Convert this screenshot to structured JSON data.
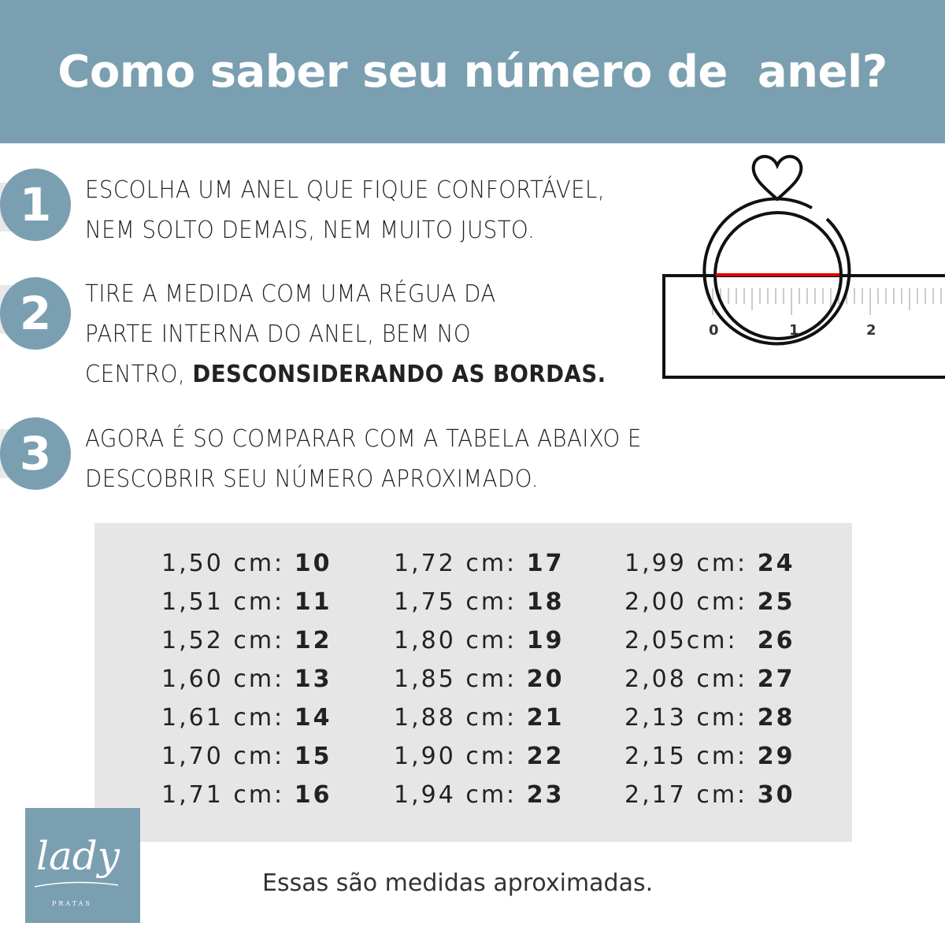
{
  "header": {
    "title": "Como saber seu número de  anel?"
  },
  "steps": [
    {
      "number": "1",
      "lines": [
        "ESCOLHA UM ANEL QUE FIQUE CONFORTÁVEL,",
        "NEM SOLTO DEMAIS, NEM MUITO JUSTO."
      ]
    },
    {
      "number": "2",
      "lines": [
        "TIRE A MEDIDA COM UMA RÉGUA DA",
        "PARTE INTERNA DO ANEL, BEM NO"
      ],
      "line3_prefix": "CENTRO, ",
      "line3_bold": "DESCONSIDERANDO AS BORDAS."
    },
    {
      "number": "3",
      "lines": [
        "AGORA É SO COMPARAR COM A TABELA ABAIXO E",
        "DESCOBRIR SEU NÚMERO APROXIMADO."
      ]
    }
  ],
  "ruler": {
    "labels": [
      "0",
      "1",
      "2"
    ],
    "measure_color": "#e00000"
  },
  "size_table": {
    "columns": [
      [
        {
          "m": "1,50 cm: ",
          "s": "10"
        },
        {
          "m": "1,51 cm: ",
          "s": "11"
        },
        {
          "m": "1,52 cm: ",
          "s": "12"
        },
        {
          "m": "1,60 cm: ",
          "s": "13"
        },
        {
          "m": "1,61 cm: ",
          "s": "14"
        },
        {
          "m": "1,70 cm: ",
          "s": "15"
        },
        {
          "m": "1,71 cm: ",
          "s": "16"
        }
      ],
      [
        {
          "m": "1,72 cm: ",
          "s": "17"
        },
        {
          "m": "1,75 cm: ",
          "s": "18"
        },
        {
          "m": "1,80 cm: ",
          "s": "19"
        },
        {
          "m": "1,85 cm: ",
          "s": "20"
        },
        {
          "m": "1,88 cm: ",
          "s": "21"
        },
        {
          "m": "1,90 cm: ",
          "s": "22"
        },
        {
          "m": "1,94 cm: ",
          "s": "23"
        }
      ],
      [
        {
          "m": "1,99 cm: ",
          "s": "24"
        },
        {
          "m": "2,00 cm: ",
          "s": "25"
        },
        {
          "m": "2,05cm:  ",
          "s": "26"
        },
        {
          "m": "2,08 cm: ",
          "s": "27"
        },
        {
          "m": "2,13 cm: ",
          "s": "28"
        },
        {
          "m": "2,15 cm: ",
          "s": "29"
        },
        {
          "m": "2,17 cm: ",
          "s": "30"
        }
      ]
    ]
  },
  "logo": {
    "text": "lady",
    "subtext": "PRATAS"
  },
  "footer": {
    "note": "Essas são medidas aproximadas."
  },
  "colors": {
    "brand": "#7a9fb1",
    "table_bg": "#e6e6e6"
  }
}
